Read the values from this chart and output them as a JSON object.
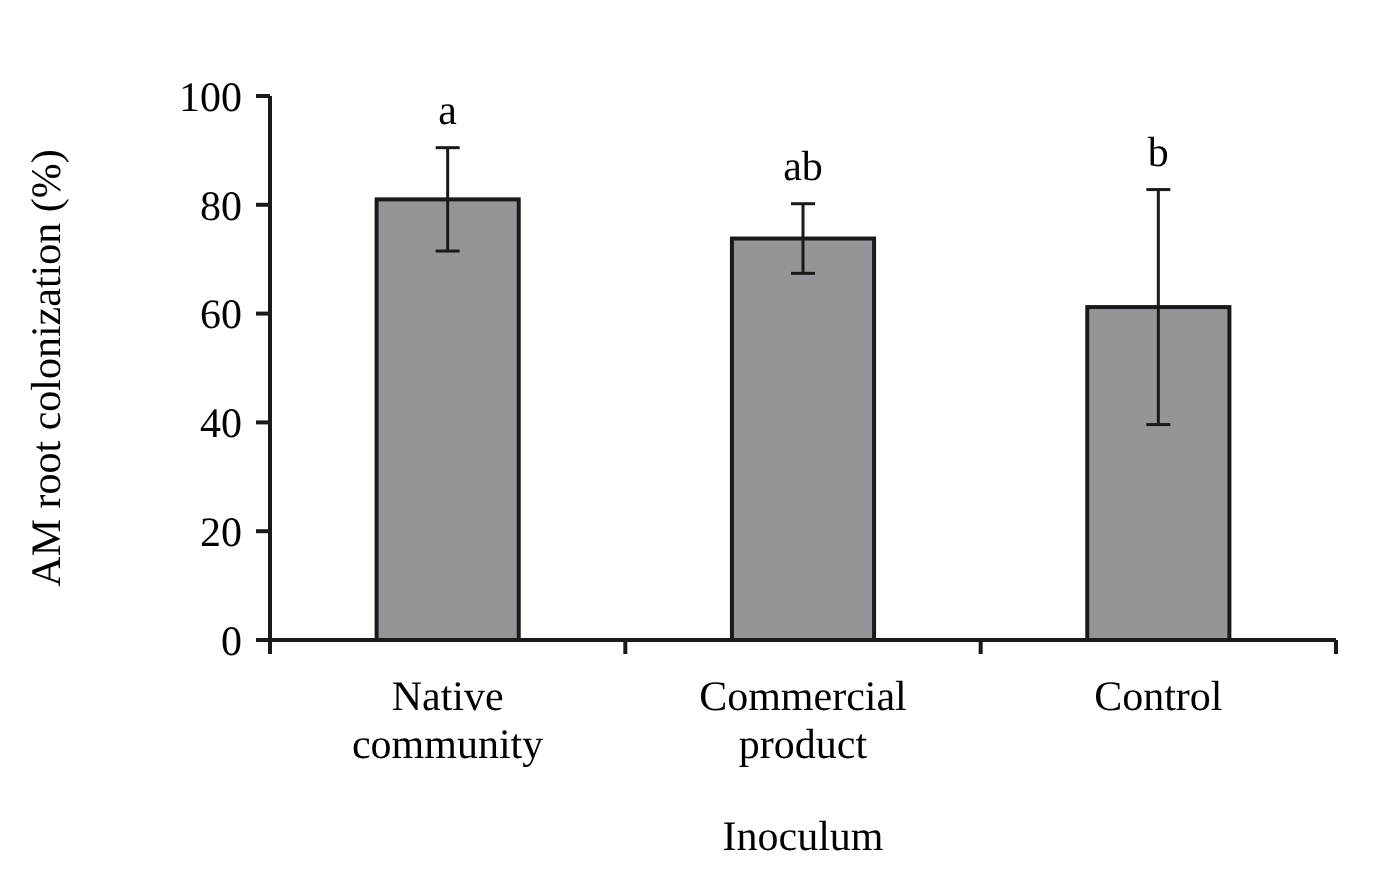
{
  "chart_data": {
    "type": "bar",
    "xlabel": "Inoculum",
    "ylabel": "AM root colonization (%)",
    "categories": [
      "Native\ncommunity",
      "Commercial\nproduct",
      "Control"
    ],
    "values": [
      81.0,
      73.8,
      61.2
    ],
    "color": "#939598",
    "errors": [
      9.5,
      6.4,
      21.6
    ],
    "ylim": [
      0,
      100
    ],
    "yticks": [
      0,
      20,
      40,
      60,
      80,
      100
    ],
    "grid": false,
    "annotations": [
      {
        "text": "a",
        "x": "Native\ncommunity",
        "y": 90.5
      },
      {
        "text": "ab",
        "x": "Commercial\nproduct",
        "y": 80.2
      },
      {
        "text": "b",
        "x": "Control",
        "y": 82.8
      }
    ]
  }
}
